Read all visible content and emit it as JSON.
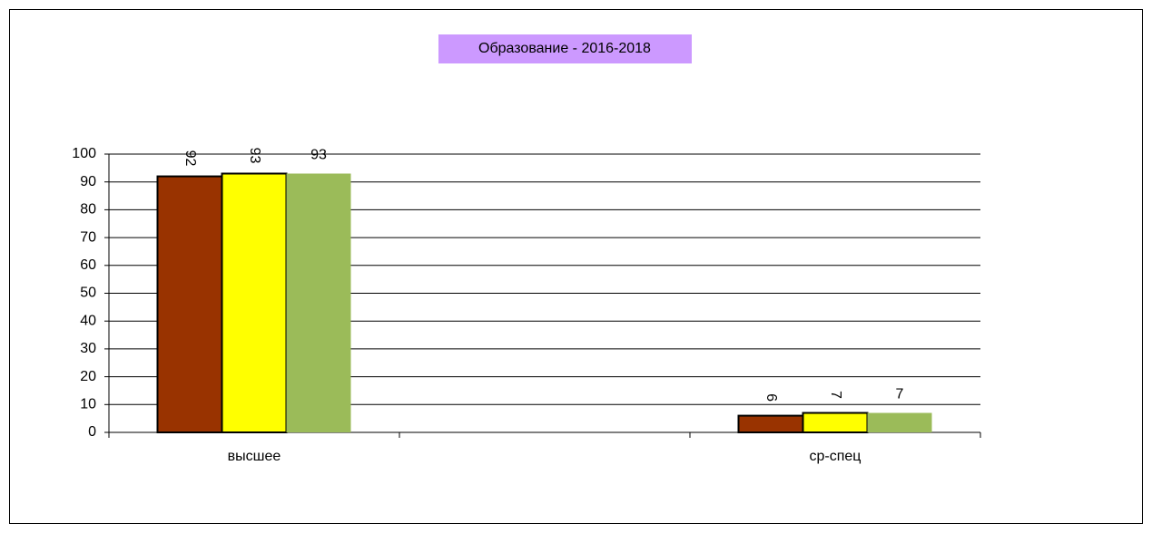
{
  "chart_data": {
    "type": "bar",
    "title": "Образование - 2016-2018",
    "categories": [
      "высшее",
      null,
      "ср-спец"
    ],
    "series": [
      {
        "color": "#993300",
        "values": [
          92,
          null,
          6
        ]
      },
      {
        "color": "#ffff00",
        "values": [
          93,
          null,
          7
        ]
      },
      {
        "color": "#9bbb59",
        "values": [
          93,
          null,
          7
        ]
      }
    ],
    "ylim": [
      0,
      100
    ],
    "yticks": [
      0,
      10,
      20,
      30,
      40,
      50,
      60,
      70,
      80,
      90,
      100
    ],
    "grid": true
  }
}
